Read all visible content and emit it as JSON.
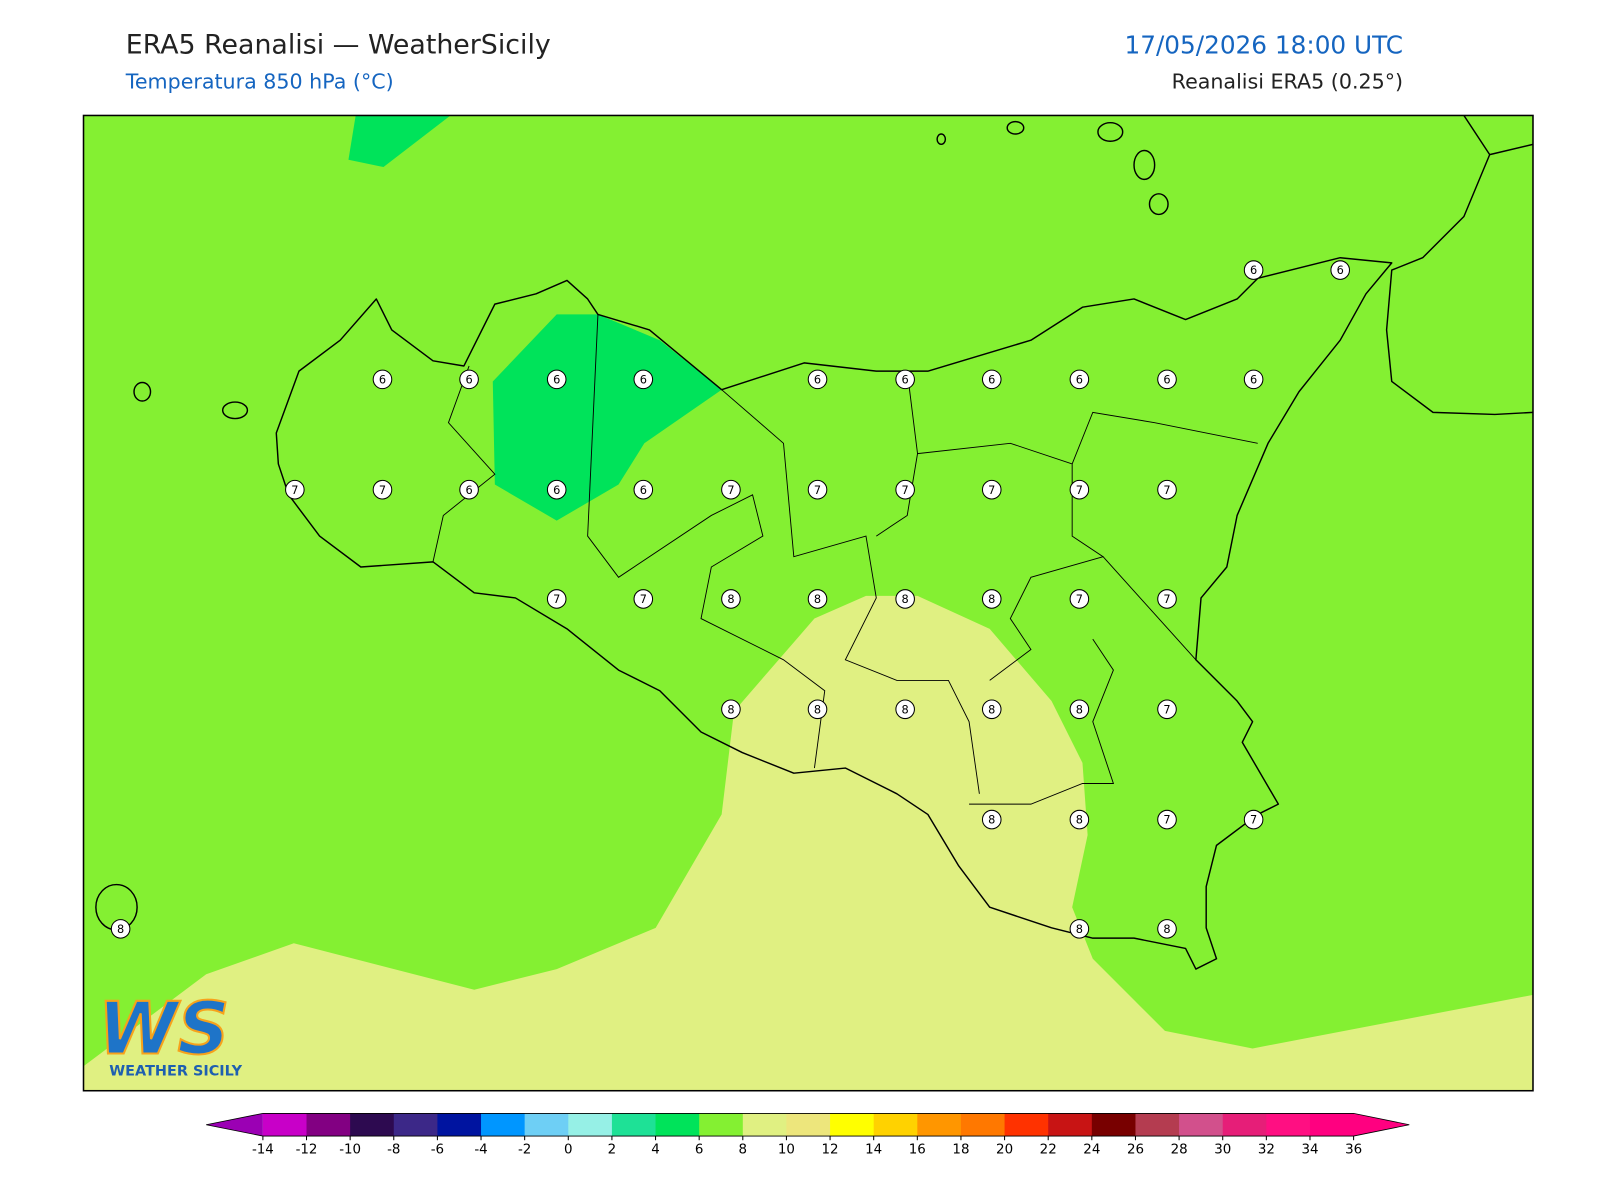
{
  "header": {
    "title": "ERA5 Reanalisi — WeatherSicily",
    "subtitle": "Temperatura 850 hPa (°C)",
    "datetime": "17/05/2026 18:00 UTC",
    "source": "Reanalisi ERA5 (0.25°)"
  },
  "points": [
    6,
    6,
    6,
    6,
    6,
    6,
    6,
    6,
    6,
    6,
    6,
    6,
    7,
    7,
    6,
    6,
    6,
    7,
    7,
    7,
    7,
    7,
    7,
    7,
    7,
    8,
    8,
    8,
    8,
    7,
    7,
    8,
    8,
    8,
    8,
    8,
    7,
    8,
    8,
    7,
    7,
    8,
    8,
    8
  ],
  "colorbar": {
    "ticks": [
      -14,
      -12,
      -10,
      -8,
      -6,
      -4,
      -2,
      0,
      2,
      4,
      6,
      8,
      10,
      12,
      14,
      16,
      18,
      20,
      22,
      24,
      26,
      28,
      30,
      32,
      34,
      36
    ],
    "under": "#9b00b4",
    "over": "#ff0080",
    "colors": [
      "#c800c8",
      "#820082",
      "#2d0a50",
      "#3c2888",
      "#0014a0",
      "#0096ff",
      "#6ecff5",
      "#96f0e6",
      "#1ee196",
      "#00e35a",
      "#84f032",
      "#e0f082",
      "#ede67c",
      "#ffff00",
      "#ffd200",
      "#ff9600",
      "#ff7800",
      "#ff3200",
      "#c81414",
      "#780000",
      "#b43c50",
      "#d2508c",
      "#e61e78",
      "#ff0f82",
      "#ff0080"
    ]
  },
  "logo": {
    "mark": "WS",
    "name": "WEATHER SICILY"
  }
}
